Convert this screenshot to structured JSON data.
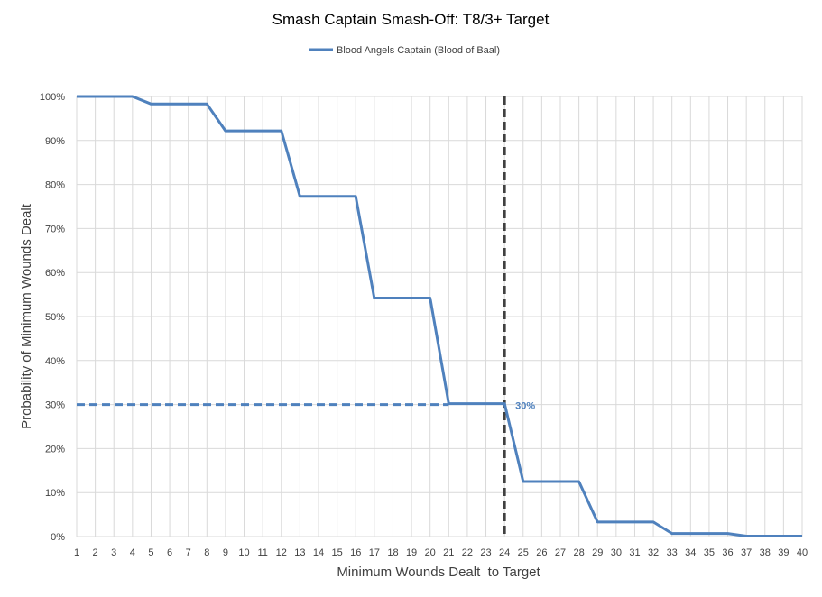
{
  "chart_data": {
    "type": "line",
    "title": "Smash Captain Smash-Off: T8/3+ Target",
    "xlabel": "Minimum Wounds Dealt  to Target",
    "ylabel": "Probability of Minimum Wounds Dealt",
    "x": [
      1,
      2,
      3,
      4,
      5,
      6,
      7,
      8,
      9,
      10,
      11,
      12,
      13,
      14,
      15,
      16,
      17,
      18,
      19,
      20,
      21,
      22,
      23,
      24,
      25,
      26,
      27,
      28,
      29,
      30,
      31,
      32,
      33,
      34,
      35,
      36,
      37,
      38,
      39,
      40
    ],
    "xlim": [
      1,
      40
    ],
    "ylim": [
      0,
      100
    ],
    "yticks": [
      "0%",
      "10%",
      "20%",
      "30%",
      "40%",
      "50%",
      "60%",
      "70%",
      "80%",
      "90%",
      "100%"
    ],
    "series": [
      {
        "name": "Blood Angels Captain (Blood of Baal)",
        "color": "#4f81bd",
        "values": [
          100,
          100,
          100,
          100,
          98.3,
          98.3,
          98.3,
          98.3,
          92.2,
          92.2,
          92.2,
          92.2,
          77.3,
          77.3,
          77.3,
          77.3,
          54.2,
          54.2,
          54.2,
          54.2,
          30.2,
          30.2,
          30.2,
          30.2,
          12.5,
          12.5,
          12.5,
          12.5,
          3.3,
          3.3,
          3.3,
          3.3,
          0.7,
          0.7,
          0.7,
          0.7,
          0.1,
          0.1,
          0.1,
          0.1
        ]
      }
    ],
    "reference_lines": {
      "horizontal": {
        "y": 30,
        "x_from": 1,
        "x_to": 21,
        "color": "#4f81bd"
      },
      "vertical": {
        "x": 24,
        "color": "#404040"
      }
    },
    "annotation": {
      "text": "30%",
      "x": 24,
      "y": 30,
      "color": "#4f81bd"
    },
    "legend_position": "top",
    "grid": true
  }
}
